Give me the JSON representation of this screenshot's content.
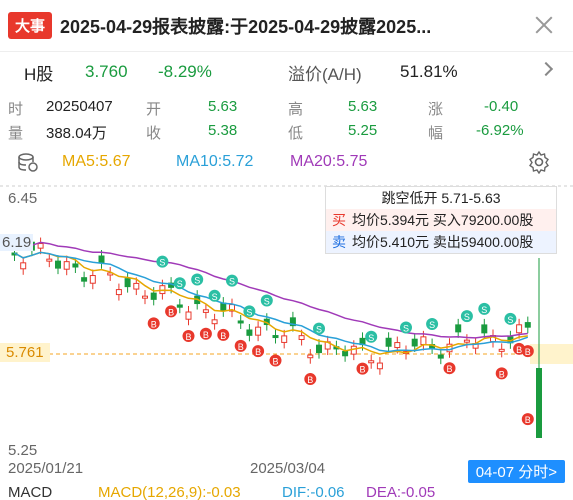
{
  "news": {
    "tag": "大事",
    "text": "2025-04-29报表披露:于2025-04-29披露2025..."
  },
  "h_share": {
    "label": "H股",
    "price": "3.760",
    "change": "-8.29%",
    "premium_label": "溢价(A/H)",
    "premium_value": "51.81%"
  },
  "info": {
    "time_label": "时",
    "time_value": "20250407",
    "open_label": "开",
    "open_value": "5.63",
    "high_label": "高",
    "high_value": "5.63",
    "change_label": "涨",
    "change_value": "-0.40",
    "volume_label": "量",
    "volume_value": "388.04万",
    "close_label": "收",
    "close_value": "5.38",
    "low_label": "低",
    "low_value": "5.25",
    "amp_label": "幅",
    "amp_value": "-6.92%"
  },
  "ma": {
    "ma5": "MA5:5.67",
    "ma10": "MA10:5.72",
    "ma20": "MA20:5.75",
    "colors": {
      "ma5": "#e6a700",
      "ma10": "#2aa0d8",
      "ma20": "#a03ab8"
    }
  },
  "chart": {
    "y_max_label": "6.45",
    "y_min_label": "5.25",
    "current_label": "6.19",
    "price_tag": "5.761",
    "x_start": "2025/01/21",
    "x_mid": "2025/03/04",
    "date_tag": "04-07 分时>",
    "tooltip": {
      "title": "跳空低开 5.71-5.63",
      "buy_tag": "买",
      "buy_text": "均价5.394元 买入79200.00股",
      "sell_tag": "卖",
      "sell_text": "均价5.410元 卖出59400.00股"
    },
    "buy_marker": "B",
    "sell_marker": "S"
  },
  "macd": {
    "label": "MACD",
    "params": "MACD(12,26,9):-0.03",
    "dif": "DIF:-0.06",
    "dea": "DEA:-0.05"
  }
}
